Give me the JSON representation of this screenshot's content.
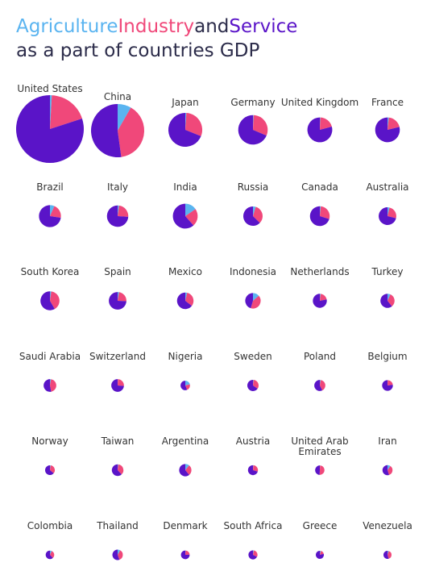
{
  "title": {
    "agriculture": "Agriculture",
    "industry": "Industry",
    "and": "and",
    "service": "Service",
    "line2": "as a part of countries GDP"
  },
  "colors": {
    "agriculture": "#5ab4f0",
    "industry": "#f0487a",
    "service": "#5a14c8"
  },
  "chart_data": {
    "type": "pie",
    "title": "Agriculture, Industry and Service as a part of countries GDP",
    "series": [
      "Agriculture",
      "Industry",
      "Service"
    ],
    "countries": [
      {
        "name": "United States",
        "gdp": 19.4,
        "agriculture": 0.9,
        "industry": 19.1,
        "service": 80.0
      },
      {
        "name": "China",
        "gdp": 12.0,
        "agriculture": 8.3,
        "industry": 39.5,
        "service": 52.2
      },
      {
        "name": "Japan",
        "gdp": 4.87,
        "agriculture": 1.0,
        "industry": 30.1,
        "service": 68.9
      },
      {
        "name": "Germany",
        "gdp": 3.68,
        "agriculture": 0.7,
        "industry": 30.7,
        "service": 68.6
      },
      {
        "name": "United Kingdom",
        "gdp": 2.62,
        "agriculture": 0.7,
        "industry": 20.2,
        "service": 79.2
      },
      {
        "name": "France",
        "gdp": 2.58,
        "agriculture": 1.7,
        "industry": 19.5,
        "service": 78.8
      },
      {
        "name": "Brazil",
        "gdp": 2.05,
        "agriculture": 6.6,
        "industry": 20.7,
        "service": 72.7
      },
      {
        "name": "Italy",
        "gdp": 1.93,
        "agriculture": 2.1,
        "industry": 23.9,
        "service": 73.9
      },
      {
        "name": "India",
        "gdp": 2.6,
        "agriculture": 15.4,
        "industry": 23.0,
        "service": 61.5
      },
      {
        "name": "Russia",
        "gdp": 1.58,
        "agriculture": 4.7,
        "industry": 32.4,
        "service": 62.3
      },
      {
        "name": "Canada",
        "gdp": 1.65,
        "agriculture": 1.6,
        "industry": 28.2,
        "service": 70.2
      },
      {
        "name": "Australia",
        "gdp": 1.32,
        "agriculture": 3.6,
        "industry": 25.3,
        "service": 71.2
      },
      {
        "name": "South Korea",
        "gdp": 1.53,
        "agriculture": 2.2,
        "industry": 39.3,
        "service": 58.3
      },
      {
        "name": "Spain",
        "gdp": 1.31,
        "agriculture": 2.6,
        "industry": 23.2,
        "service": 74.2
      },
      {
        "name": "Mexico",
        "gdp": 1.15,
        "agriculture": 3.6,
        "industry": 31.9,
        "service": 64.5
      },
      {
        "name": "Indonesia",
        "gdp": 1.01,
        "agriculture": 13.7,
        "industry": 41.0,
        "service": 45.4
      },
      {
        "name": "Netherlands",
        "gdp": 0.83,
        "agriculture": 1.6,
        "industry": 17.9,
        "service": 70.2
      },
      {
        "name": "Turkey",
        "gdp": 0.85,
        "agriculture": 6.8,
        "industry": 32.3,
        "service": 60.7
      },
      {
        "name": "Saudi Arabia",
        "gdp": 0.68,
        "agriculture": 2.6,
        "industry": 44.2,
        "service": 53.2
      },
      {
        "name": "Switzerland",
        "gdp": 0.68,
        "agriculture": 0.7,
        "industry": 25.6,
        "service": 73.7
      },
      {
        "name": "Nigeria",
        "gdp": 0.38,
        "agriculture": 21.1,
        "industry": 22.5,
        "service": 56.4
      },
      {
        "name": "Sweden",
        "gdp": 0.54,
        "agriculture": 1.6,
        "industry": 33.0,
        "service": 65.4
      },
      {
        "name": "Poland",
        "gdp": 0.52,
        "agriculture": 2.4,
        "industry": 40.2,
        "service": 57.4
      },
      {
        "name": "Belgium",
        "gdp": 0.49,
        "agriculture": 0.7,
        "industry": 22.1,
        "service": 77.2
      },
      {
        "name": "Norway",
        "gdp": 0.4,
        "agriculture": 2.3,
        "industry": 33.7,
        "service": 64.0
      },
      {
        "name": "Taiwan",
        "gdp": 0.57,
        "agriculture": 1.8,
        "industry": 36.0,
        "service": 62.1
      },
      {
        "name": "Argentina",
        "gdp": 0.64,
        "agriculture": 10.8,
        "industry": 28.1,
        "service": 61.1
      },
      {
        "name": "Austria",
        "gdp": 0.42,
        "agriculture": 1.3,
        "industry": 28.4,
        "service": 70.3
      },
      {
        "name": "United Arab Emirates",
        "gdp": 0.38,
        "agriculture": 0.9,
        "industry": 49.8,
        "service": 49.2
      },
      {
        "name": "Iran",
        "gdp": 0.43,
        "agriculture": 9.6,
        "industry": 35.3,
        "service": 55.0
      },
      {
        "name": "Colombia",
        "gdp": 0.31,
        "agriculture": 7.2,
        "industry": 30.8,
        "service": 62.1
      },
      {
        "name": "Thailand",
        "gdp": 0.46,
        "agriculture": 8.2,
        "industry": 36.2,
        "service": 55.6
      },
      {
        "name": "Denmark",
        "gdp": 0.32,
        "agriculture": 1.3,
        "industry": 22.9,
        "service": 75.8
      },
      {
        "name": "South Africa",
        "gdp": 0.35,
        "agriculture": 2.8,
        "industry": 29.7,
        "service": 67.5
      },
      {
        "name": "Greece",
        "gdp": 0.2,
        "agriculture": 4.1,
        "industry": 16.9,
        "service": 79.1
      },
      {
        "name": "Venezuela",
        "gdp": 0.21,
        "agriculture": 4.7,
        "industry": 40.4,
        "service": 54.9
      }
    ]
  }
}
